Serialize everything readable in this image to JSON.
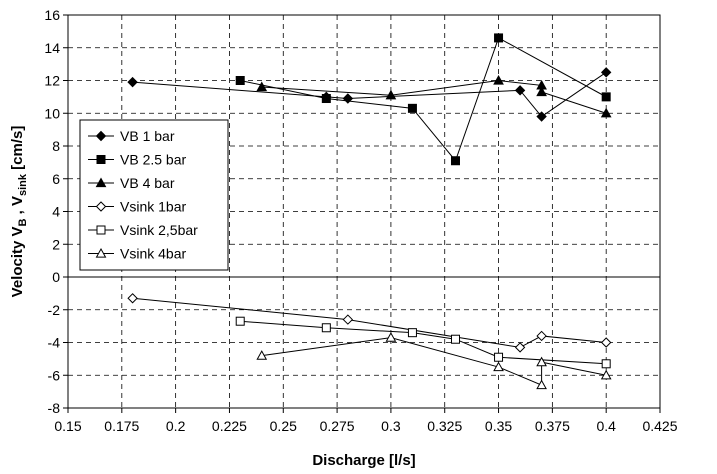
{
  "chart_data": {
    "type": "scatter",
    "xlabel": "Discharge [l/s]",
    "ylabel": {
      "parts": [
        {
          "text": "Velocity V",
          "sub": false
        },
        {
          "text": "B",
          "sub": true
        },
        {
          "text": " , V",
          "sub": false
        },
        {
          "text": "sink",
          "sub": true
        },
        {
          "text": " [cm/s]",
          "sub": false
        }
      ]
    },
    "xlim": [
      0.15,
      0.425
    ],
    "ylim": [
      -8,
      16
    ],
    "x_ticks": [
      "0.15",
      "0.175",
      "0.2",
      "0.225",
      "0.25",
      "0.275",
      "0.3",
      "0.325",
      "0.35",
      "0.375",
      "0.4",
      "0.425"
    ],
    "y_ticks": [
      "-8",
      "-6",
      "-4",
      "-2",
      "0",
      "2",
      "4",
      "6",
      "8",
      "10",
      "12",
      "14",
      "16"
    ],
    "grid": "dashed",
    "legend_position": "left",
    "series": [
      {
        "name": "VB 1 bar",
        "marker": "diamond",
        "filled": true,
        "x": [
          0.18,
          0.27,
          0.28,
          0.36,
          0.37,
          0.4
        ],
        "y": [
          11.9,
          11.0,
          10.9,
          11.4,
          9.8,
          12.5
        ]
      },
      {
        "name": "VB 2.5 bar",
        "marker": "square",
        "filled": true,
        "x": [
          0.23,
          0.27,
          0.31,
          0.33,
          0.35,
          0.4
        ],
        "y": [
          12.0,
          10.9,
          10.3,
          7.1,
          14.6,
          11.0
        ]
      },
      {
        "name": "VB 4 bar",
        "marker": "triangle",
        "filled": true,
        "x": [
          0.24,
          0.3,
          0.35,
          0.37,
          0.37,
          0.4
        ],
        "y": [
          11.6,
          11.1,
          12.0,
          11.7,
          11.3,
          10.0
        ]
      },
      {
        "name": "Vsink 1bar",
        "marker": "diamond",
        "filled": false,
        "x": [
          0.18,
          0.28,
          0.36,
          0.37,
          0.4
        ],
        "y": [
          -1.3,
          -2.6,
          -4.3,
          -3.6,
          -4.0
        ]
      },
      {
        "name": "Vsink 2,5bar",
        "marker": "square",
        "filled": false,
        "x": [
          0.23,
          0.27,
          0.31,
          0.33,
          0.35,
          0.4
        ],
        "y": [
          -2.7,
          -3.1,
          -3.4,
          -3.8,
          -4.9,
          -5.3
        ]
      },
      {
        "name": "Vsink 4bar",
        "marker": "triangle",
        "filled": false,
        "x": [
          0.24,
          0.3,
          0.35,
          0.37,
          0.37,
          0.4
        ],
        "y": [
          -4.8,
          -3.7,
          -5.5,
          -6.6,
          -5.2,
          -6.0
        ]
      }
    ]
  }
}
